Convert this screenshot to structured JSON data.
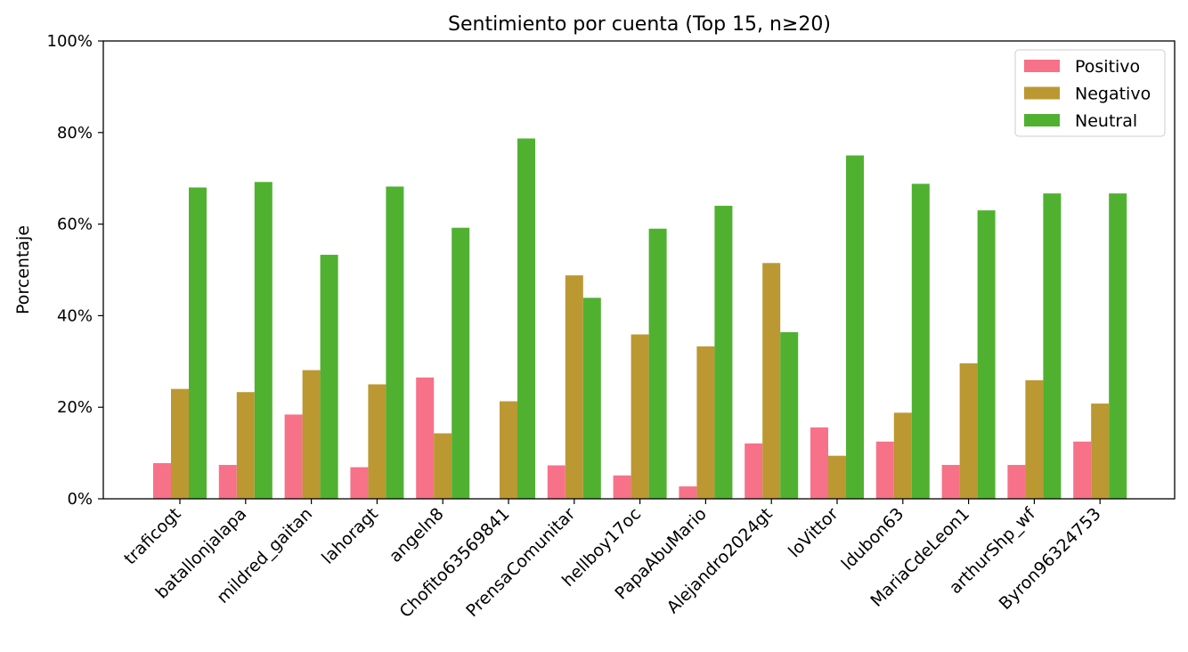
{
  "chart_data": {
    "type": "bar",
    "title": "Sentimiento por cuenta (Top 15, n≥20)",
    "xlabel": "",
    "ylabel": "Porcentaje",
    "ylim": [
      0,
      100
    ],
    "yticks": [
      "0%",
      "20%",
      "40%",
      "60%",
      "80%",
      "100%"
    ],
    "legend_position": "top-right",
    "grid": false,
    "categories": [
      "traficogt",
      "batallonjalapa",
      "mildred_gaitan",
      "lahoragt",
      "angeln8",
      "Chofito63569841",
      "PrensaComunitar",
      "hellboy17oc",
      "PapaAbuMario",
      "Alejandro2024gt",
      "loVittor",
      "ldubon63",
      "MariaCdeLeon1",
      "arthurShp_wf",
      "Byron96324753"
    ],
    "series": [
      {
        "name": "Positivo",
        "color": "#f77189",
        "values": [
          7.8,
          7.4,
          18.4,
          6.9,
          26.5,
          0,
          7.3,
          5.1,
          2.7,
          12.1,
          15.6,
          12.5,
          7.4,
          7.4,
          12.5
        ]
      },
      {
        "name": "Negativo",
        "color": "#bb9832",
        "values": [
          24.0,
          23.3,
          28.1,
          25.0,
          14.3,
          21.3,
          48.8,
          35.9,
          33.3,
          51.5,
          9.4,
          18.8,
          29.6,
          25.9,
          20.8
        ]
      },
      {
        "name": "Neutral",
        "color": "#50b131",
        "values": [
          68.0,
          69.2,
          53.3,
          68.2,
          59.2,
          78.7,
          43.9,
          59.0,
          64.0,
          36.4,
          75.0,
          68.8,
          63.0,
          66.7,
          66.7
        ]
      }
    ]
  }
}
